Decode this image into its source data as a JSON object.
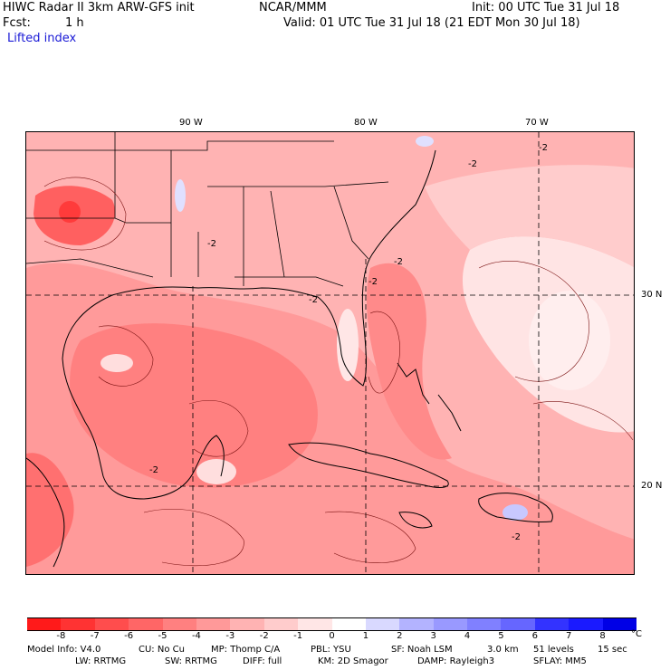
{
  "header": {
    "model_title": "HIWC Radar II 3km ARW-GFS init",
    "org": "NCAR/MMM",
    "init": "Init: 00 UTC Tue 31 Jul 18",
    "fcst_label": "Fcst:",
    "fcst_value": "1 h",
    "valid": "Valid: 01 UTC Tue 31 Jul 18 (21 EDT Mon 30 Jul 18)",
    "field": "Lifted index"
  },
  "map": {
    "lon_labels": [
      "90 W",
      "80 W",
      "70 W"
    ],
    "lat_labels": [
      "30 N",
      "20 N"
    ],
    "contour_labels": [
      "-2",
      "-2",
      "-2",
      "-2",
      "-2",
      "-2",
      "-2",
      "-2"
    ],
    "colors": {
      "background": "#ffc8c8",
      "strong": "#ff5a5a",
      "medium": "#ff8080",
      "weak": "#ffb0b0",
      "near_zero": "#ffe8e8",
      "positive": "#d8d8ff",
      "coast": "#000000"
    }
  },
  "colorbar": {
    "levels": [
      "-8",
      "-7",
      "-6",
      "-5",
      "-4",
      "-3",
      "-2",
      "-1",
      "0",
      "1",
      "2",
      "3",
      "4",
      "5",
      "6",
      "7",
      "8"
    ],
    "colors": [
      "#ff1a1a",
      "#ff3333",
      "#ff4d4d",
      "#ff6666",
      "#ff8080",
      "#ff9999",
      "#ffb3b3",
      "#ffcccc",
      "#ffe6e6",
      "#ffffff",
      "#d9d9ff",
      "#b3b3ff",
      "#9999ff",
      "#8080ff",
      "#6666ff",
      "#3333ff",
      "#1a1aff",
      "#0000e6"
    ],
    "unit": "°C"
  },
  "footer": {
    "line1": [
      "Model Info: V4.0",
      "CU: No Cu",
      "MP: Thomp C/A",
      "PBL: YSU",
      "SF: Noah LSM",
      "3.0 km",
      "51 levels",
      "15 sec"
    ],
    "line2": [
      "LW: RRTMG",
      "SW: RRTMG",
      "DIFF: full",
      "KM: 2D Smagor",
      "DAMP: Rayleigh3",
      "SFLAY: MM5"
    ]
  }
}
